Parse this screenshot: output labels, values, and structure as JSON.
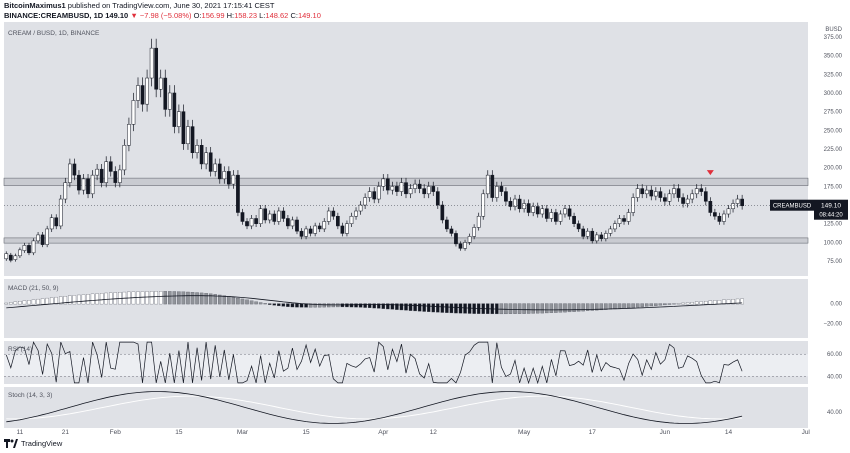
{
  "header": {
    "author": "BitcoinMaximus1",
    "published_text": "published on TradingView.com, June 30, 2021 17:15:41 CEST",
    "symbol": "BINANCE:CREAMBUSD, 1D",
    "last": "149.10",
    "change": "▼ −7.98 (−5.08%)",
    "o_label": "O:",
    "o": "156.99",
    "h_label": "H:",
    "h": "158.23",
    "l_label": "L:",
    "l": "148.62",
    "c_label": "C:",
    "c": "149.10"
  },
  "chart_data": {
    "type": "candlestick",
    "title": "CREAM / BUSD, 1D, BINANCE",
    "currency_label": "BUSD",
    "ylim": [
      55,
      395
    ],
    "y_ticks": [
      75,
      100,
      125,
      150,
      175,
      200,
      225,
      250,
      275,
      300,
      325,
      350,
      375
    ],
    "y_tick_labels": [
      "75.00",
      "100.00",
      "125.00",
      "150.00",
      "175.00",
      "200.00",
      "225.00",
      "250.00",
      "275.00",
      "300.00",
      "325.00",
      "350.00",
      "375.00"
    ],
    "x_tick_labels": [
      "11",
      "21",
      "Feb",
      "15",
      "Mar",
      "15",
      "Apr",
      "12",
      "May",
      "17",
      "Jun",
      "14",
      "Jul"
    ],
    "x_tick_days": [
      4,
      14,
      25,
      39,
      53,
      67,
      84,
      95,
      115,
      130,
      146,
      160,
      177
    ],
    "day_count": 177,
    "resistance_zone": [
      176,
      186
    ],
    "support_zone": [
      99,
      106
    ],
    "price_label": {
      "symbol": "CREAMBUSD",
      "price": "149.10",
      "countdown": "08:44:20",
      "value": 149.1
    },
    "sell_marker": {
      "day": 156,
      "price": 190
    },
    "candles": [
      [
        1,
        78,
        85
      ],
      [
        2,
        83,
        76
      ],
      [
        3,
        77,
        82
      ],
      [
        4,
        82,
        90
      ],
      [
        5,
        89,
        96
      ],
      [
        6,
        96,
        86
      ],
      [
        7,
        86,
        102
      ],
      [
        8,
        102,
        110
      ],
      [
        9,
        110,
        97
      ],
      [
        10,
        97,
        118
      ],
      [
        11,
        118,
        133
      ],
      [
        12,
        133,
        122
      ],
      [
        13,
        122,
        158
      ],
      [
        14,
        158,
        180
      ],
      [
        15,
        180,
        205
      ],
      [
        16,
        205,
        190
      ],
      [
        17,
        190,
        170
      ],
      [
        18,
        170,
        185
      ],
      [
        19,
        185,
        165
      ],
      [
        20,
        165,
        190
      ],
      [
        21,
        190,
        198
      ],
      [
        22,
        198,
        180
      ],
      [
        23,
        180,
        208
      ],
      [
        24,
        208,
        195
      ],
      [
        25,
        195,
        180
      ],
      [
        26,
        180,
        197
      ],
      [
        27,
        197,
        230
      ],
      [
        28,
        230,
        258
      ],
      [
        29,
        258,
        290
      ],
      [
        30,
        290,
        310
      ],
      [
        31,
        310,
        285
      ],
      [
        32,
        285,
        320
      ],
      [
        33,
        320,
        360
      ],
      [
        34,
        360,
        305
      ],
      [
        35,
        305,
        320
      ],
      [
        36,
        320,
        278
      ],
      [
        37,
        278,
        300
      ],
      [
        38,
        300,
        255
      ],
      [
        39,
        255,
        275
      ],
      [
        40,
        275,
        232
      ],
      [
        41,
        232,
        255
      ],
      [
        42,
        255,
        220
      ],
      [
        43,
        220,
        230
      ],
      [
        44,
        230,
        205
      ],
      [
        45,
        205,
        220
      ],
      [
        46,
        220,
        195
      ],
      [
        47,
        195,
        205
      ],
      [
        48,
        205,
        185
      ],
      [
        49,
        185,
        195
      ],
      [
        50,
        195,
        178
      ],
      [
        51,
        178,
        190
      ],
      [
        52,
        190,
        140
      ],
      [
        53,
        140,
        128
      ],
      [
        54,
        128,
        122
      ],
      [
        55,
        122,
        132
      ],
      [
        56,
        132,
        125
      ],
      [
        57,
        125,
        145
      ],
      [
        58,
        145,
        130
      ],
      [
        59,
        130,
        138
      ],
      [
        60,
        138,
        128
      ],
      [
        61,
        128,
        142
      ],
      [
        62,
        142,
        132
      ],
      [
        63,
        132,
        122
      ],
      [
        64,
        122,
        130
      ],
      [
        65,
        130,
        115
      ],
      [
        66,
        115,
        108
      ],
      [
        67,
        108,
        118
      ],
      [
        68,
        118,
        112
      ],
      [
        69,
        112,
        122
      ],
      [
        70,
        122,
        118
      ],
      [
        71,
        118,
        128
      ],
      [
        72,
        128,
        142
      ],
      [
        73,
        142,
        135
      ],
      [
        74,
        135,
        122
      ],
      [
        75,
        122,
        112
      ],
      [
        76,
        112,
        125
      ],
      [
        77,
        125,
        135
      ],
      [
        78,
        135,
        142
      ],
      [
        79,
        142,
        150
      ],
      [
        80,
        150,
        160
      ],
      [
        81,
        160,
        168
      ],
      [
        82,
        168,
        158
      ],
      [
        83,
        158,
        175
      ],
      [
        84,
        175,
        185
      ],
      [
        85,
        185,
        170
      ],
      [
        86,
        170,
        175
      ],
      [
        87,
        175,
        168
      ],
      [
        88,
        168,
        180
      ],
      [
        89,
        180,
        165
      ],
      [
        90,
        165,
        172
      ],
      [
        91,
        172,
        178
      ],
      [
        92,
        178,
        172
      ],
      [
        93,
        172,
        165
      ],
      [
        94,
        165,
        175
      ],
      [
        95,
        175,
        168
      ],
      [
        96,
        168,
        150
      ],
      [
        97,
        150,
        130
      ],
      [
        98,
        130,
        118
      ],
      [
        99,
        118,
        112
      ],
      [
        100,
        112,
        98
      ],
      [
        101,
        98,
        92
      ],
      [
        102,
        92,
        100
      ],
      [
        103,
        100,
        108
      ],
      [
        104,
        108,
        120
      ],
      [
        105,
        120,
        135
      ],
      [
        106,
        135,
        165
      ],
      [
        107,
        165,
        190
      ],
      [
        108,
        190,
        160
      ],
      [
        109,
        160,
        175
      ],
      [
        110,
        175,
        168
      ],
      [
        111,
        168,
        155
      ],
      [
        112,
        155,
        148
      ],
      [
        113,
        148,
        158
      ],
      [
        114,
        158,
        145
      ],
      [
        115,
        145,
        152
      ],
      [
        116,
        152,
        140
      ],
      [
        117,
        140,
        148
      ],
      [
        118,
        148,
        138
      ],
      [
        119,
        138,
        145
      ],
      [
        120,
        145,
        132
      ],
      [
        121,
        132,
        140
      ],
      [
        122,
        140,
        128
      ],
      [
        123,
        128,
        138
      ],
      [
        124,
        138,
        145
      ],
      [
        125,
        145,
        135
      ],
      [
        126,
        135,
        125
      ],
      [
        127,
        125,
        118
      ],
      [
        128,
        118,
        108
      ],
      [
        129,
        108,
        115
      ],
      [
        130,
        115,
        102
      ],
      [
        131,
        102,
        110
      ],
      [
        132,
        110,
        105
      ],
      [
        133,
        105,
        112
      ],
      [
        134,
        112,
        118
      ],
      [
        135,
        118,
        125
      ],
      [
        136,
        125,
        132
      ],
      [
        137,
        132,
        128
      ],
      [
        138,
        128,
        140
      ],
      [
        139,
        140,
        160
      ],
      [
        140,
        160,
        172
      ],
      [
        141,
        172,
        165
      ],
      [
        142,
        165,
        170
      ],
      [
        143,
        170,
        162
      ],
      [
        144,
        162,
        168
      ],
      [
        145,
        168,
        160
      ],
      [
        146,
        160,
        155
      ],
      [
        147,
        155,
        165
      ],
      [
        148,
        165,
        172
      ],
      [
        149,
        172,
        160
      ],
      [
        150,
        160,
        152
      ],
      [
        151,
        152,
        158
      ],
      [
        152,
        158,
        165
      ],
      [
        153,
        165,
        172
      ],
      [
        154,
        172,
        168
      ],
      [
        155,
        168,
        155
      ],
      [
        156,
        155,
        140
      ],
      [
        157,
        140,
        135
      ],
      [
        158,
        135,
        128
      ],
      [
        159,
        128,
        138
      ],
      [
        160,
        138,
        145
      ],
      [
        161,
        145,
        152
      ],
      [
        162,
        152,
        158
      ],
      [
        163,
        158,
        149
      ]
    ],
    "macd": {
      "title": "MACD (21, 50, 9)",
      "ylim": [
        -35,
        25
      ],
      "y_ticks": [
        0,
        -20
      ],
      "y_tick_labels": [
        "0.00",
        "−20.00"
      ]
    },
    "rsi": {
      "title": "RSI (14)",
      "ylim": [
        33,
        72
      ],
      "y_ticks": [
        60,
        40
      ],
      "y_tick_labels": [
        "60.00",
        "40.00"
      ],
      "band": [
        40,
        60
      ]
    },
    "stoch": {
      "title": "Stoch (14, 3, 3)",
      "ylim": [
        5,
        95
      ],
      "y_ticks": [
        40
      ],
      "y_tick_labels": [
        "40.00"
      ]
    }
  },
  "footer": {
    "brand": "TradingView"
  }
}
